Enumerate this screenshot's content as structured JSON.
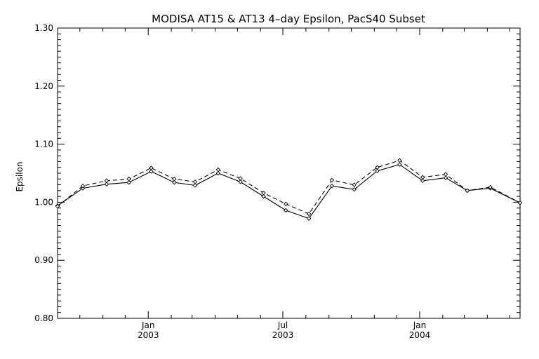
{
  "chart_data": {
    "type": "line",
    "title": "MODISA AT15 & AT13 4–day Epsilon, PacS40 Subset",
    "ylabel": "Epsilon",
    "xlabel": "",
    "ylim": [
      0.8,
      1.3
    ],
    "yticks": [
      "0.80",
      "0.90",
      "1.00",
      "1.10",
      "1.20",
      "1.30"
    ],
    "xlim": [
      "2002-09-01",
      "2004-05-15"
    ],
    "xticks": [
      {
        "date": "2003-01-01",
        "month": "Jan",
        "year": "2003"
      },
      {
        "date": "2003-07-01",
        "month": "Jul",
        "year": "2003"
      },
      {
        "date": "2004-01-01",
        "month": "Jan",
        "year": "2004"
      }
    ],
    "grid": false,
    "legend": "none",
    "series": [
      {
        "style": "solid",
        "marker": "diamond",
        "x": [
          "2002-09-01",
          "2002-10-05",
          "2002-11-06",
          "2002-12-06",
          "2003-01-05",
          "2003-02-05",
          "2003-03-05",
          "2003-04-05",
          "2003-05-05",
          "2003-06-05",
          "2003-07-05",
          "2003-08-05",
          "2003-09-05",
          "2003-10-05",
          "2003-11-05",
          "2003-12-05",
          "2004-01-05",
          "2004-02-05",
          "2004-03-05",
          "2004-04-05",
          "2004-05-15"
        ],
        "values": [
          0.994,
          1.024,
          1.031,
          1.034,
          1.053,
          1.034,
          1.029,
          1.05,
          1.035,
          1.01,
          0.986,
          0.972,
          1.028,
          1.022,
          1.054,
          1.065,
          1.037,
          1.042,
          1.02,
          1.024,
          0.999
        ]
      },
      {
        "style": "dashed",
        "marker": "diamond",
        "x": [
          "2002-09-01",
          "2002-10-05",
          "2002-11-06",
          "2002-12-06",
          "2003-01-05",
          "2003-02-05",
          "2003-03-05",
          "2003-04-05",
          "2003-05-05",
          "2003-06-05",
          "2003-07-05",
          "2003-08-05",
          "2003-09-05",
          "2003-10-05",
          "2003-11-05",
          "2003-12-05",
          "2004-01-05",
          "2004-02-05",
          "2004-03-05",
          "2004-04-05",
          "2004-05-15"
        ],
        "values": [
          0.993,
          1.028,
          1.037,
          1.04,
          1.059,
          1.04,
          1.035,
          1.056,
          1.041,
          1.016,
          0.997,
          0.98,
          1.038,
          1.03,
          1.06,
          1.072,
          1.043,
          1.048,
          1.02,
          1.026,
          0.999
        ]
      }
    ]
  }
}
